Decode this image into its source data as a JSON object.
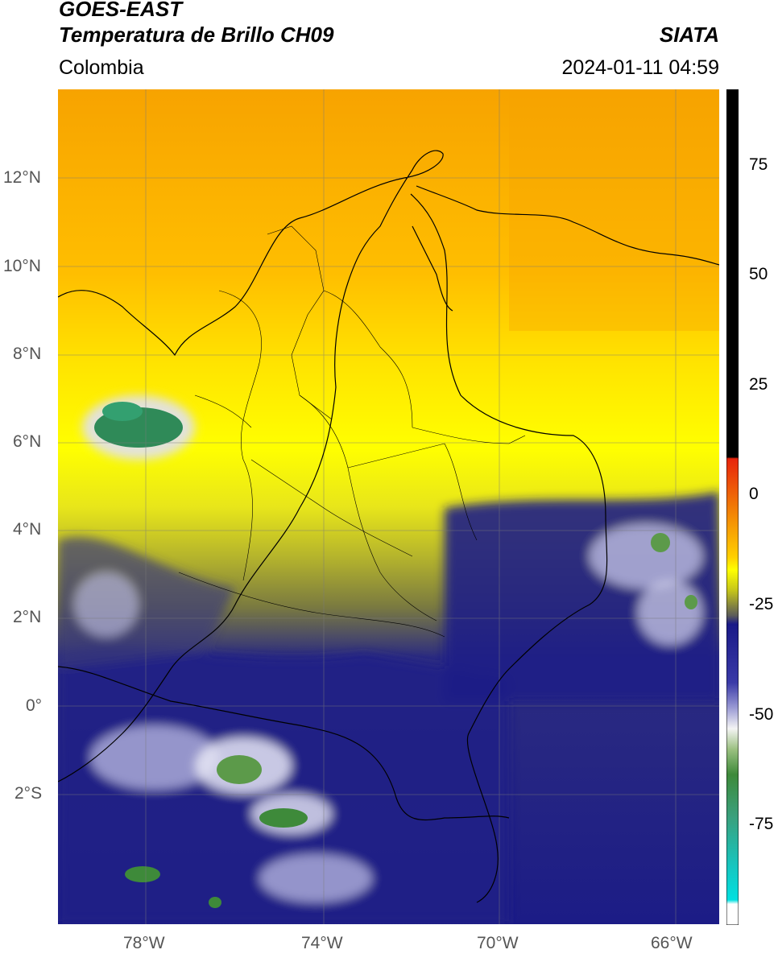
{
  "header": {
    "satellite": "GOES-EAST",
    "product": "Temperatura de Brillo CH09",
    "region": "Colombia",
    "agency": "SIATA",
    "datetime": "2024-01-11 04:59"
  },
  "axes": {
    "lat_ticks": [
      "12°N",
      "10°N",
      "8°N",
      "6°N",
      "4°N",
      "2°N",
      "0°",
      "2°S"
    ],
    "lon_ticks": [
      "78°W",
      "74°W",
      "70°W",
      "66°W"
    ],
    "extent": {
      "lon_min": -80,
      "lon_max": -65,
      "lat_min": -4.5,
      "lat_max": 14
    },
    "grid": true
  },
  "colorbar": {
    "ticks": [
      "75",
      "50",
      "25",
      "0",
      "-25",
      "-50",
      "-75"
    ],
    "colors": {
      "warm_black": "#000000",
      "red": "#e8240c",
      "orange": "#f7a300",
      "yellow": "#ffff00",
      "olive": "#9a9a28",
      "navy": "#1a1a88",
      "white": "#f4f4f4",
      "green": "#3e8a3a",
      "cyan": "#00e0e0"
    }
  }
}
